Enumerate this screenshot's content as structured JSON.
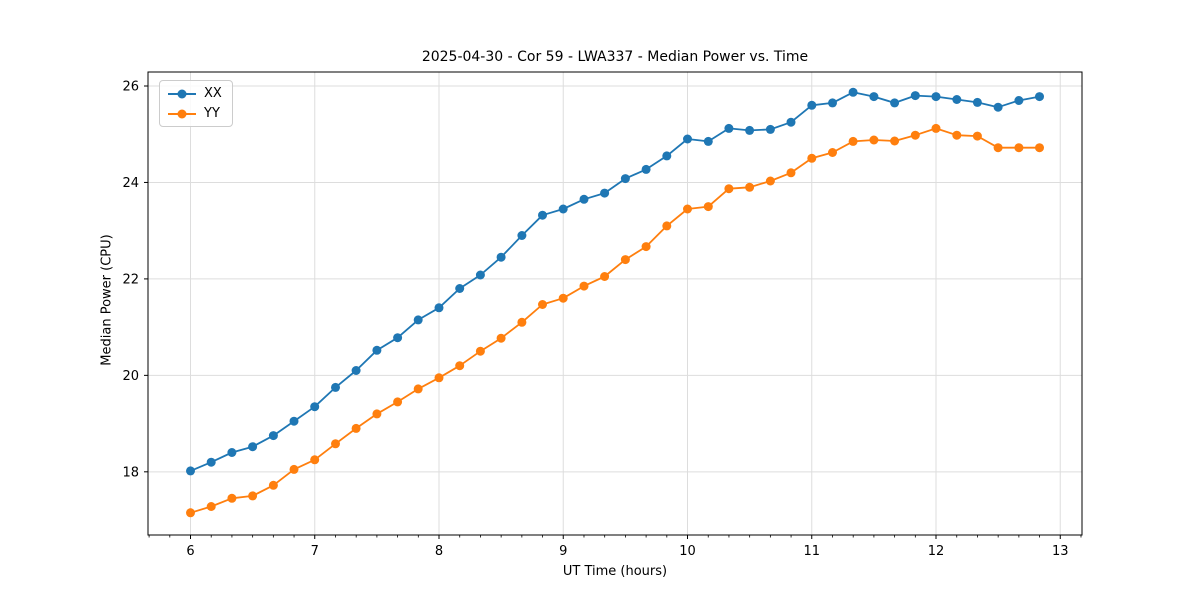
{
  "title": "2025-04-30 - Cor 59 - LWA337 - Median Power vs. Time",
  "legend": {
    "items": [
      {
        "label": "XX",
        "color": "#1f77b4"
      },
      {
        "label": "YY",
        "color": "#ff7f0e"
      }
    ]
  },
  "chart_data": {
    "type": "line",
    "title": "2025-04-30 - Cor 59 - LWA337 - Median Power vs. Time",
    "xlabel": "UT Time (hours)",
    "ylabel": "Median Power (CPU)",
    "xlim": [
      5.658,
      13.175
    ],
    "ylim": [
      16.69,
      26.29
    ],
    "xticks": [
      6,
      7,
      8,
      9,
      10,
      11,
      12,
      13
    ],
    "yticks": [
      18,
      20,
      22,
      24,
      26
    ],
    "x_minor_step": 0.16667,
    "grid": true,
    "grid_color": "#dddddd",
    "legend_position": "upper-left",
    "marker": "circle",
    "marker_radius": 4.5,
    "line_width": 1.8,
    "x": [
      6.0,
      6.167,
      6.333,
      6.5,
      6.667,
      6.833,
      7.0,
      7.167,
      7.333,
      7.5,
      7.667,
      7.833,
      8.0,
      8.167,
      8.333,
      8.5,
      8.667,
      8.833,
      9.0,
      9.167,
      9.333,
      9.5,
      9.667,
      9.833,
      10.0,
      10.167,
      10.333,
      10.5,
      10.667,
      10.833,
      11.0,
      11.167,
      11.333,
      11.5,
      11.667,
      11.833,
      12.0,
      12.167,
      12.333,
      12.5,
      12.667,
      12.833
    ],
    "series": [
      {
        "name": "XX",
        "color": "#1f77b4",
        "values": [
          18.02,
          18.2,
          18.4,
          18.52,
          18.75,
          19.05,
          19.35,
          19.75,
          20.1,
          20.52,
          20.78,
          21.15,
          21.4,
          21.8,
          22.08,
          22.45,
          22.9,
          23.32,
          23.45,
          23.65,
          23.78,
          24.08,
          24.27,
          24.55,
          24.9,
          24.85,
          25.12,
          25.08,
          25.1,
          25.25,
          25.6,
          25.65,
          25.87,
          25.78,
          25.65,
          25.8,
          25.78,
          25.72,
          25.66,
          25.56,
          25.7,
          25.78
        ]
      },
      {
        "name": "YY",
        "color": "#ff7f0e",
        "values": [
          17.15,
          17.28,
          17.45,
          17.5,
          17.72,
          18.05,
          18.25,
          18.58,
          18.9,
          19.2,
          19.45,
          19.72,
          19.95,
          20.2,
          20.5,
          20.77,
          21.1,
          21.47,
          21.6,
          21.85,
          22.05,
          22.4,
          22.67,
          23.1,
          23.45,
          23.5,
          23.87,
          23.9,
          24.03,
          24.2,
          24.5,
          24.62,
          24.85,
          24.88,
          24.86,
          24.98,
          25.12,
          24.98,
          24.96,
          24.72,
          24.72,
          24.72
        ]
      }
    ]
  }
}
